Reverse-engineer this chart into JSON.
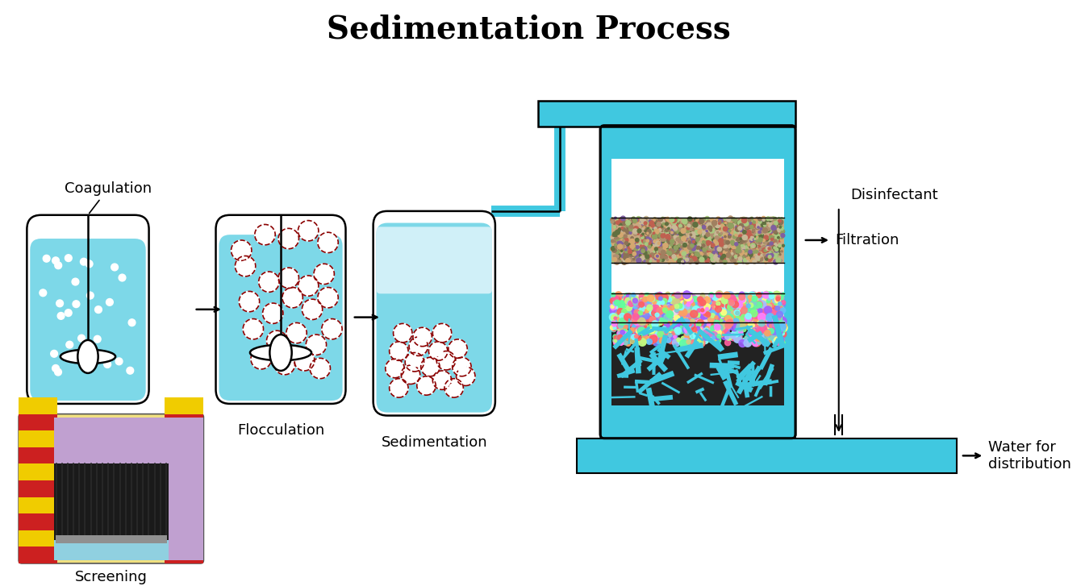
{
  "title": "Sedimentation Process",
  "title_fontsize": 28,
  "title_fontweight": "bold",
  "bg_color": "#ffffff",
  "water_color": "#7dd8e8",
  "container_edge": "#000000",
  "cyan_color": "#40c8e0",
  "labels": {
    "coagulation": "Coagulation",
    "flocculation": "Flocculation",
    "sedimentation": "Sedimentation",
    "filtration": "Filtration",
    "disinfectant": "Disinfectant",
    "water_dist": "Water for\ndistribution",
    "screening": "Screening"
  },
  "label_fontsize": 13
}
